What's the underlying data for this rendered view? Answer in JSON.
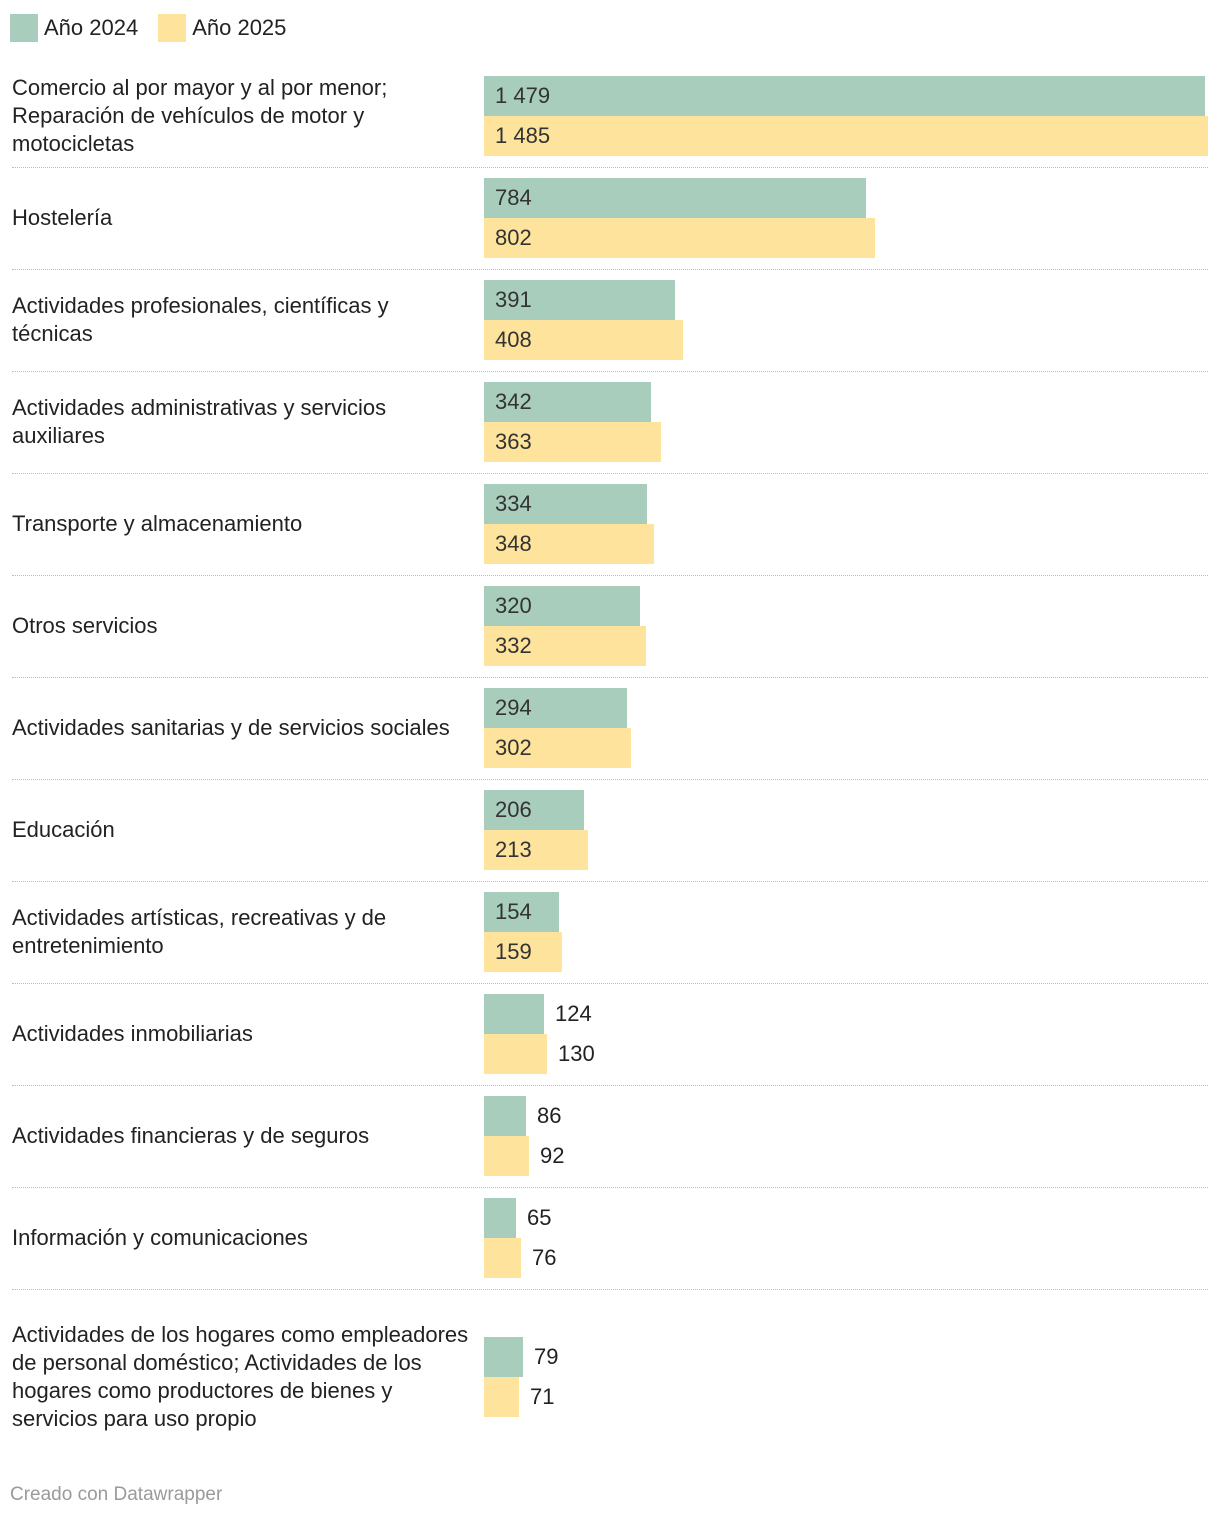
{
  "colors": {
    "series_2024": "#a8cdbc",
    "series_2025": "#fee39c"
  },
  "legend": [
    {
      "label": "Año 2024"
    },
    {
      "label": "Año 2025"
    }
  ],
  "chart_data": {
    "type": "bar",
    "orientation": "horizontal",
    "title": "",
    "xlabel": "",
    "ylabel": "",
    "xlim": [
      0,
      1485
    ],
    "grid": false,
    "legend_position": "top-left",
    "categories": [
      "Comercio al por mayor y al por menor; Reparación de vehículos de motor y motocicletas",
      "Hostelería",
      "Actividades profesionales, científicas y técnicas",
      "Actividades administrativas y servicios auxiliares",
      "Transporte y almacenamiento",
      "Otros servicios",
      "Actividades sanitarias y de servicios sociales",
      "Educación",
      "Actividades artísticas, recreativas y de entretenimiento",
      "Actividades inmobiliarias",
      "Actividades financieras y de seguros",
      "Información y comunicaciones",
      "Actividades de los hogares como empleadores de personal doméstico; Actividades de los hogares como productores de bienes y servicios para uso propio"
    ],
    "series": [
      {
        "name": "Año 2024",
        "values": [
          1479,
          784,
          391,
          342,
          334,
          320,
          294,
          206,
          154,
          124,
          86,
          65,
          79
        ],
        "labels": [
          "1 479",
          "784",
          "391",
          "342",
          "334",
          "320",
          "294",
          "206",
          "154",
          "124",
          "86",
          "65",
          "79"
        ]
      },
      {
        "name": "Año 2025",
        "values": [
          1485,
          802,
          408,
          363,
          348,
          332,
          302,
          213,
          159,
          130,
          92,
          76,
          71
        ],
        "labels": [
          "1 485",
          "802",
          "408",
          "363",
          "348",
          "332",
          "302",
          "213",
          "159",
          "130",
          "92",
          "76",
          "71"
        ]
      }
    ]
  },
  "footer": {
    "credit": "Creado con Datawrapper"
  }
}
